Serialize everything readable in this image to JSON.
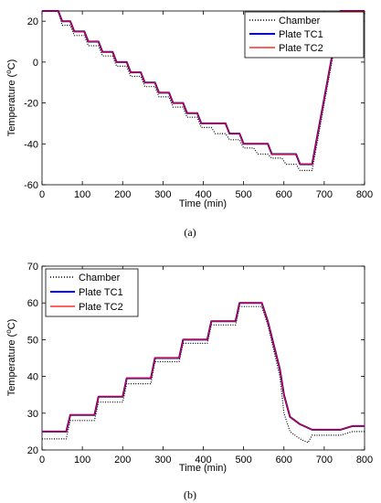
{
  "chart_data": [
    {
      "type": "line",
      "panel_label": "(a)",
      "xlabel": "Time (min)",
      "ylabel": "Temperature (°C)",
      "xlim": [
        0,
        800
      ],
      "ylim": [
        -60,
        25
      ],
      "xticks": [
        "0",
        "100",
        "200",
        "300",
        "400",
        "500",
        "600",
        "700",
        "800"
      ],
      "yticks": [
        "-60",
        "-40",
        "-20",
        "0",
        "20"
      ],
      "legend": "top-right",
      "series": [
        {
          "name": "Chamber",
          "color": "#000000",
          "style": "dotted",
          "x": [
            0,
            40,
            50,
            70,
            80,
            105,
            115,
            140,
            150,
            175,
            185,
            210,
            220,
            245,
            255,
            280,
            290,
            315,
            325,
            350,
            360,
            385,
            395,
            420,
            430,
            455,
            465,
            490,
            500,
            525,
            535,
            560,
            570,
            595,
            605,
            630,
            640,
            670,
            740,
            800
          ],
          "y": [
            25,
            25,
            18,
            18,
            13,
            13,
            8,
            8,
            3,
            3,
            -2,
            -2,
            -7,
            -7,
            -12,
            -12,
            -17,
            -17,
            -22,
            -22,
            -27,
            -27,
            -32,
            -32,
            -35,
            -35,
            -38,
            -38,
            -42,
            -42,
            -45,
            -45,
            -47,
            -47,
            -50,
            -50,
            -53,
            -53,
            23,
            23
          ]
        },
        {
          "name": "Plate TC1",
          "color": "#0000cc",
          "style": "solid",
          "x": [
            0,
            40,
            50,
            70,
            80,
            105,
            115,
            140,
            150,
            175,
            185,
            210,
            220,
            245,
            255,
            280,
            290,
            315,
            325,
            350,
            360,
            385,
            395,
            420,
            430,
            455,
            465,
            490,
            500,
            525,
            535,
            560,
            570,
            595,
            605,
            630,
            640,
            670,
            740,
            800
          ],
          "y": [
            25,
            25,
            20,
            20,
            15,
            15,
            10,
            10,
            5,
            5,
            0,
            0,
            -5,
            -5,
            -10,
            -10,
            -15,
            -15,
            -20,
            -20,
            -25,
            -25,
            -30,
            -30,
            -30,
            -30,
            -35,
            -35,
            -40,
            -40,
            -40,
            -40,
            -45,
            -45,
            -45,
            -45,
            -50,
            -50,
            25,
            25
          ]
        },
        {
          "name": "Plate TC2",
          "color": "#ff0000",
          "style": "solid",
          "x": [
            0,
            40,
            50,
            70,
            80,
            105,
            115,
            140,
            150,
            175,
            185,
            210,
            220,
            245,
            255,
            280,
            290,
            315,
            325,
            350,
            360,
            385,
            395,
            420,
            430,
            455,
            465,
            490,
            500,
            525,
            535,
            560,
            570,
            595,
            605,
            630,
            640,
            670,
            740,
            800
          ],
          "y": [
            25,
            25,
            20,
            20,
            15,
            15,
            10,
            10,
            5,
            5,
            0,
            0,
            -5,
            -5,
            -10,
            -10,
            -15,
            -15,
            -20,
            -20,
            -25,
            -25,
            -30,
            -30,
            -30,
            -30,
            -35,
            -35,
            -40,
            -40,
            -40,
            -40,
            -45,
            -45,
            -45,
            -45,
            -50,
            -50,
            25,
            25
          ]
        }
      ]
    },
    {
      "type": "line",
      "panel_label": "(b)",
      "xlabel": "Time (min)",
      "ylabel": "Temperature (°C)",
      "xlim": [
        0,
        800
      ],
      "ylim": [
        20,
        70
      ],
      "xticks": [
        "0",
        "100",
        "200",
        "300",
        "400",
        "500",
        "600",
        "700",
        "800"
      ],
      "yticks": [
        "20",
        "30",
        "40",
        "50",
        "60",
        "70"
      ],
      "legend": "top-left",
      "series": [
        {
          "name": "Chamber",
          "color": "#000000",
          "style": "dotted",
          "x": [
            0,
            60,
            70,
            130,
            140,
            200,
            210,
            270,
            280,
            340,
            350,
            410,
            420,
            480,
            490,
            545,
            560,
            590,
            600,
            615,
            640,
            660,
            670,
            740,
            770,
            800
          ],
          "y": [
            23,
            23,
            28,
            28,
            33,
            33,
            38,
            38,
            44,
            44,
            49,
            49,
            54,
            54,
            59,
            59,
            54,
            40,
            30,
            25,
            23,
            22,
            24,
            24,
            25,
            25
          ]
        },
        {
          "name": "Plate TC1",
          "color": "#0000cc",
          "style": "solid",
          "x": [
            0,
            60,
            70,
            130,
            140,
            200,
            210,
            270,
            280,
            340,
            350,
            410,
            420,
            480,
            490,
            545,
            560,
            590,
            600,
            615,
            640,
            660,
            670,
            740,
            770,
            800
          ],
          "y": [
            25,
            25,
            29.5,
            29.5,
            34.5,
            34.5,
            39.5,
            39.5,
            45,
            45,
            50,
            50,
            55,
            55,
            60,
            60,
            55,
            42,
            35,
            29,
            27,
            26,
            25.5,
            25.5,
            26.5,
            26.5
          ]
        },
        {
          "name": "Plate TC2",
          "color": "#ff0000",
          "style": "solid",
          "x": [
            0,
            60,
            70,
            130,
            140,
            200,
            210,
            270,
            280,
            340,
            350,
            410,
            420,
            480,
            490,
            545,
            560,
            590,
            600,
            615,
            640,
            660,
            670,
            740,
            770,
            800
          ],
          "y": [
            25,
            25,
            29.5,
            29.5,
            34.5,
            34.5,
            39.5,
            39.5,
            45,
            45,
            50,
            50,
            55,
            55,
            60,
            60,
            55,
            42,
            35,
            29,
            27,
            26,
            25.5,
            25.5,
            26.5,
            26.5
          ]
        }
      ]
    }
  ]
}
